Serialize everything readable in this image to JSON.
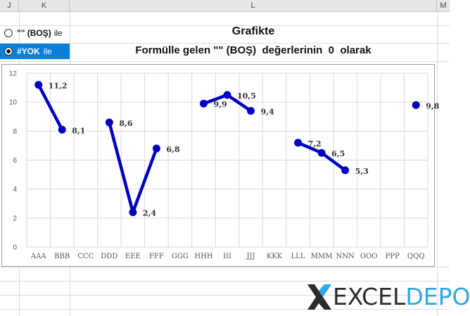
{
  "columns": [
    "J",
    "K",
    "L",
    "M"
  ],
  "options": [
    {
      "bold": "\"\" (BOŞ)",
      "text": "ile",
      "selected": false
    },
    {
      "bold": "#YOK",
      "text": "ile",
      "selected": true
    }
  ],
  "title_line1": "Grafikte",
  "title_line2": "Formülle gelen \"\" (BOŞ)  değerlerinin  0  olarak",
  "chart_data": {
    "type": "line",
    "categories": [
      "AAA",
      "BBB",
      "CCC",
      "DDD",
      "EEE",
      "FFF",
      "GGG",
      "HHH",
      "III",
      "JJJ",
      "KKK",
      "LLL",
      "MMM",
      "NNN",
      "OOO",
      "PPP",
      "QQQ"
    ],
    "values": [
      11.2,
      8.1,
      null,
      8.6,
      2.4,
      6.8,
      null,
      9.9,
      10.5,
      9.4,
      null,
      7.2,
      6.5,
      5.3,
      null,
      null,
      9.8
    ],
    "labels": [
      "11,2",
      "8,1",
      "",
      "8,6",
      "2,4",
      "6,8",
      "",
      "9,9",
      "10,5",
      "9,4",
      "",
      "7,2",
      "6,5",
      "5,3",
      "",
      "",
      "9,8"
    ],
    "ylim": [
      0,
      12
    ],
    "yticks": [
      "0",
      "2",
      "4",
      "6",
      "8",
      "10",
      "12"
    ],
    "grid": true,
    "line_color": "#0000c0",
    "marker_color": "#0000c0"
  },
  "logo": {
    "part1": "EXCEL",
    "part2": "DEPO",
    "color1": "#2b2b2b",
    "color2": "#2fa8e3"
  }
}
